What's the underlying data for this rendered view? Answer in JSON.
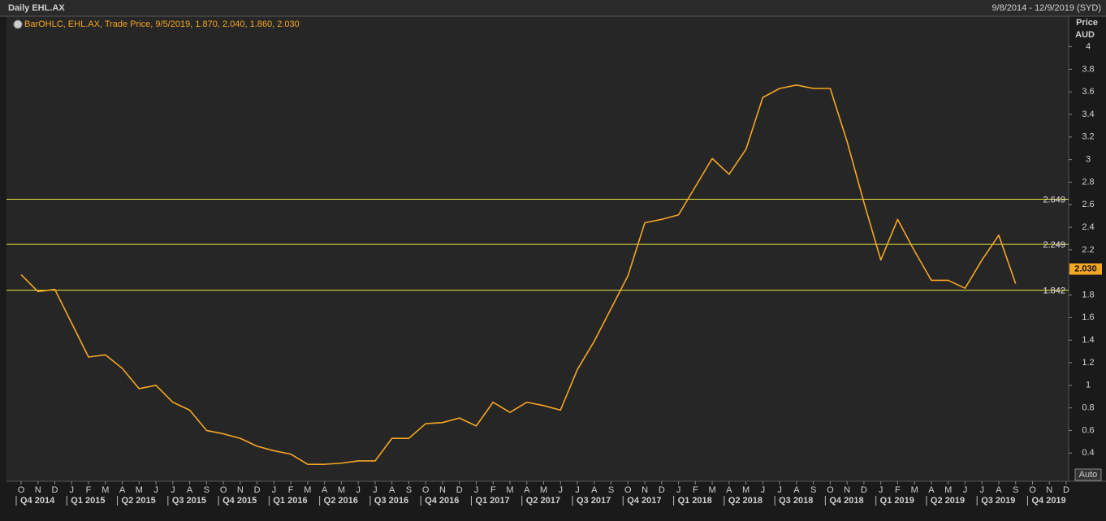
{
  "chart_data": {
    "type": "line",
    "title": "Daily EHL.AX",
    "date_range": "9/8/2014 - 12/9/2019 (SYD)",
    "legend": "BarOHLC, EHL.AX, Trade Price, 9/5/2019, 1.870, 2.040, 1.860, 2.030",
    "y_axis_label": "Price",
    "y_axis_unit": "AUD",
    "categories": [
      "O",
      "N",
      "D",
      "J",
      "F",
      "M",
      "A",
      "M",
      "J",
      "J",
      "A",
      "S",
      "O",
      "N",
      "D",
      "J",
      "F",
      "M",
      "A",
      "M",
      "J",
      "J",
      "A",
      "S",
      "O",
      "N",
      "D",
      "J",
      "F",
      "M",
      "A",
      "M",
      "J",
      "J",
      "A",
      "S",
      "O",
      "N",
      "D",
      "J",
      "F",
      "M",
      "A",
      "M",
      "J",
      "J",
      "A",
      "S",
      "O",
      "N",
      "D",
      "J",
      "F",
      "M",
      "A",
      "M",
      "J",
      "J",
      "A",
      "S",
      "O",
      "N",
      "D"
    ],
    "quarters": [
      "Q4 2014",
      "Q1 2015",
      "Q2 2015",
      "Q3 2015",
      "Q4 2015",
      "Q1 2016",
      "Q2 2016",
      "Q3 2016",
      "Q4 2016",
      "Q1 2017",
      "Q2 2017",
      "Q3 2017",
      "Q4 2017",
      "Q1 2018",
      "Q2 2018",
      "Q3 2018",
      "Q4 2018",
      "Q1 2019",
      "Q2 2019",
      "Q3 2019",
      "Q4 2019"
    ],
    "series": [
      {
        "color": "#f5a623",
        "values": [
          1.98,
          1.83,
          1.85,
          1.55,
          1.25,
          1.27,
          1.15,
          0.97,
          1.0,
          0.85,
          0.78,
          0.6,
          0.57,
          0.53,
          0.46,
          0.42,
          0.39,
          0.3,
          0.3,
          0.31,
          0.33,
          0.33,
          0.53,
          0.53,
          0.66,
          0.67,
          0.71,
          0.64,
          0.85,
          0.76,
          0.85,
          0.82,
          0.78,
          1.14,
          1.39,
          1.68,
          1.97,
          2.44,
          2.47,
          2.51,
          2.76,
          3.01,
          2.87,
          3.09,
          3.55,
          3.63,
          3.66,
          3.63,
          3.63,
          3.16,
          2.62,
          2.11,
          2.47,
          2.19,
          1.93,
          1.93,
          1.86,
          2.11,
          2.33,
          1.9,
          null,
          null,
          null
        ]
      }
    ],
    "ylim": [
      0.15,
      4.27
    ],
    "yticks": [
      0.4,
      0.6,
      0.8,
      1,
      1.2,
      1.4,
      1.6,
      1.8,
      2,
      2.2,
      2.4,
      2.6,
      2.8,
      3,
      3.2,
      3.4,
      3.6,
      3.8,
      4
    ],
    "reference_lines": [
      2.649,
      2.249,
      1.842
    ],
    "reference_color": "#e8e840",
    "last_price": {
      "value": 2.03,
      "label": "2.030"
    },
    "scale_button": "Auto"
  }
}
